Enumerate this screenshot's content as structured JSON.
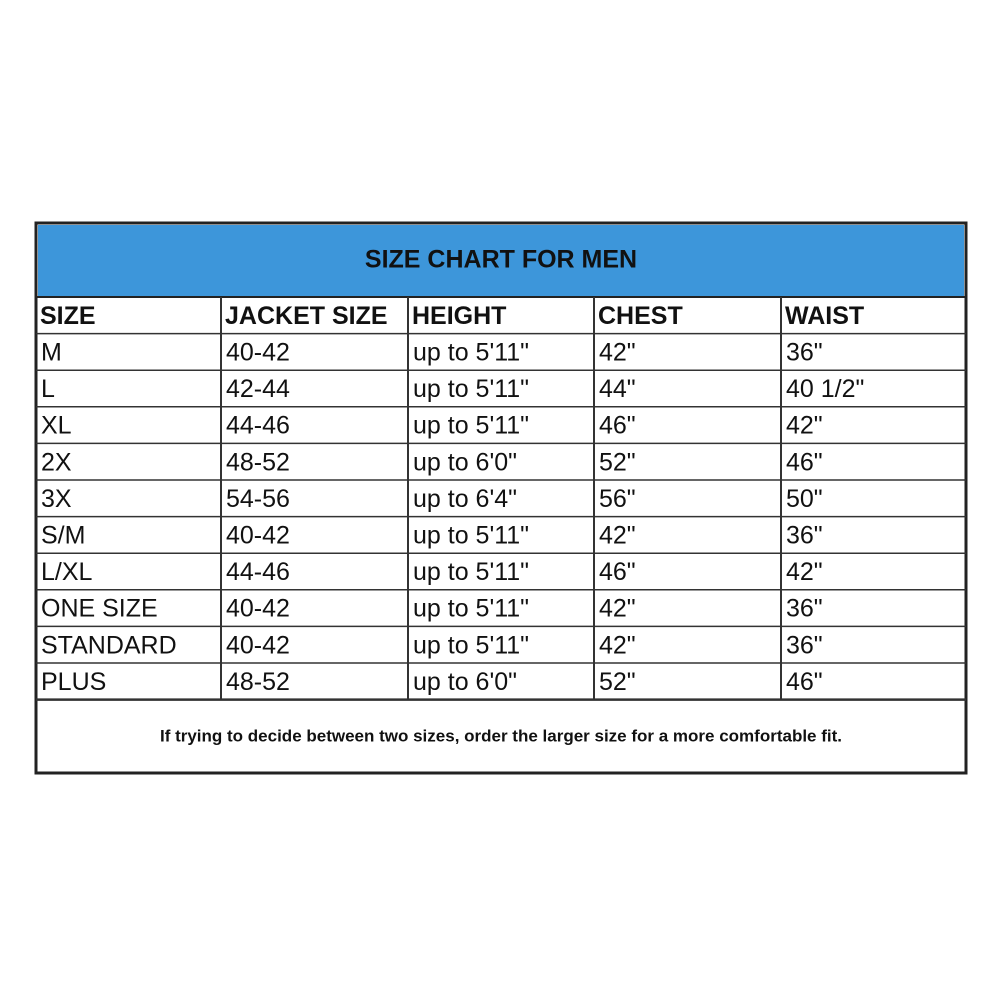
{
  "table": {
    "title": "SIZE CHART FOR MEN",
    "header": [
      "SIZE",
      "JACKET SIZE",
      "HEIGHT",
      "CHEST",
      "WAIST"
    ],
    "rows": [
      [
        "M",
        "40-42",
        "up to 5'11\"",
        "42\"",
        "36\""
      ],
      [
        "L",
        "42-44",
        "up to 5'11\"",
        "44\"",
        "40 1/2\""
      ],
      [
        "XL",
        "44-46",
        "up to 5'11\"",
        "46\"",
        "42\""
      ],
      [
        "2X",
        "48-52",
        "up to 6'0\"",
        "52\"",
        "46\""
      ],
      [
        "3X",
        "54-56",
        "up to 6'4\"",
        "56\"",
        "50\""
      ],
      [
        "S/M",
        "40-42",
        "up to 5'11\"",
        "42\"",
        "36\""
      ],
      [
        "L/XL",
        "44-46",
        "up to 5'11\"",
        "46\"",
        "42\""
      ],
      [
        "ONE SIZE",
        "40-42",
        "up to 5'11\"",
        "42\"",
        "36\""
      ],
      [
        "STANDARD",
        "40-42",
        "up to 5'11\"",
        "42\"",
        "36\""
      ],
      [
        "PLUS",
        "48-52",
        "up to 6'0\"",
        "52\"",
        "46\""
      ]
    ],
    "note": "If trying to decide between two sizes, order the larger size for a more comfortable fit."
  }
}
